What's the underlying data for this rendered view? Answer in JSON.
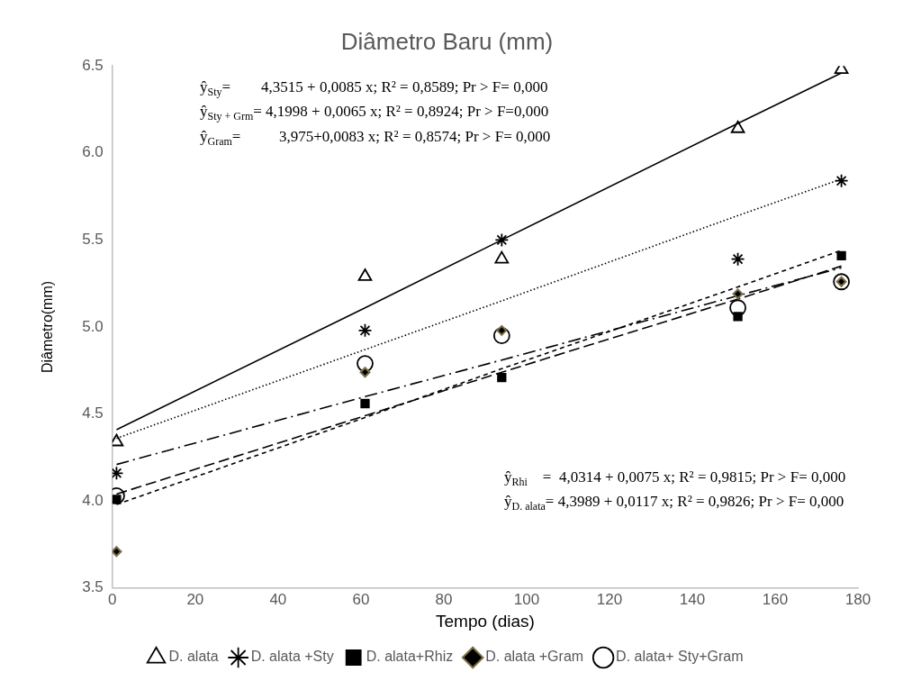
{
  "chart_data": {
    "type": "scatter",
    "title": "Diâmetro Baru (mm)",
    "xlabel": "Tempo (dias)",
    "ylabel": "Diâmetro(mm)",
    "xlim": [
      0,
      180
    ],
    "xticks": [
      0,
      20,
      40,
      60,
      80,
      100,
      120,
      140,
      160,
      180
    ],
    "ylim": [
      3.5,
      6.5
    ],
    "yticks": [
      3.5,
      {
        "value": 4,
        "label": "4.0"
      },
      4.5,
      {
        "value": 5,
        "label": "5.0"
      },
      5.5,
      {
        "value": 6,
        "label": "6.0"
      },
      6.5
    ],
    "grid": false,
    "legend": "bottom",
    "x": [
      1,
      61,
      94,
      151,
      176
    ],
    "series": [
      {
        "name": "D. alata",
        "color": "#000000",
        "marker": "triangle",
        "values": [
          4.34,
          5.29,
          5.39,
          6.14,
          6.48
        ]
      },
      {
        "name": "D. alata +Sty",
        "color": "#000000",
        "marker": "cross",
        "values": [
          4.16,
          4.98,
          5.5,
          5.39,
          5.84
        ]
      },
      {
        "name": "D. alata+Rhiz",
        "color": "#000000",
        "marker": "square",
        "values": [
          4.01,
          4.56,
          4.71,
          5.06,
          5.41
        ]
      },
      {
        "name": "D. alata +Gram",
        "color": "#7d7048",
        "marker": "diamond",
        "values": [
          3.71,
          4.74,
          4.98,
          5.19,
          5.26
        ]
      },
      {
        "name": "D. alata+ Sty+Gram",
        "color": "#000000",
        "marker": "circle",
        "values": [
          4.03,
          4.79,
          4.95,
          5.11,
          5.26
        ]
      },
      {
        "type": "line",
        "color": "#000000",
        "line_style": "solid",
        "marker": "none",
        "values": [
          4.41,
          5.11,
          5.5,
          6.17,
          6.46
        ]
      },
      {
        "type": "line",
        "color": "#000000",
        "line_style": "dotted",
        "marker": "none",
        "values": [
          4.36,
          4.87,
          5.15,
          5.64,
          5.85
        ]
      },
      {
        "type": "line",
        "color": "#000000",
        "line_style": "dashdot",
        "marker": "none",
        "values": [
          4.21,
          4.6,
          4.81,
          5.18,
          5.34
        ]
      },
      {
        "type": "line",
        "color": "#000000",
        "line_style": "dashed",
        "marker": "none",
        "values": [
          4.04,
          4.49,
          4.74,
          5.16,
          5.35
        ]
      },
      {
        "type": "line",
        "color": "#000000",
        "line_style": "shortdash",
        "marker": "none",
        "values": [
          3.98,
          4.48,
          4.76,
          5.23,
          5.44
        ]
      }
    ],
    "annotations": [
      "ŷ$_{Sty}$=        4,3515 + 0,0085 x; R² = 0,8589; Pr > F= 0,000",
      "ŷ$_{Sty + Grm}$= 4,1998 + 0,0065 x; R² = 0,8924; Pr > F=0,000",
      "ŷ$_{Gram}$=          3,975+0,0083 x; R² = 0,8574; Pr > F= 0,000",
      "ŷ$_{Rhi}$    =  4,0314 + 0,0075 x; R² = 0,9815; Pr > F= 0,000",
      "ŷ$_{D. alata}$= 4,3989 + 0,0117 x; R² = 0,9826; Pr > F= 0,000"
    ]
  }
}
